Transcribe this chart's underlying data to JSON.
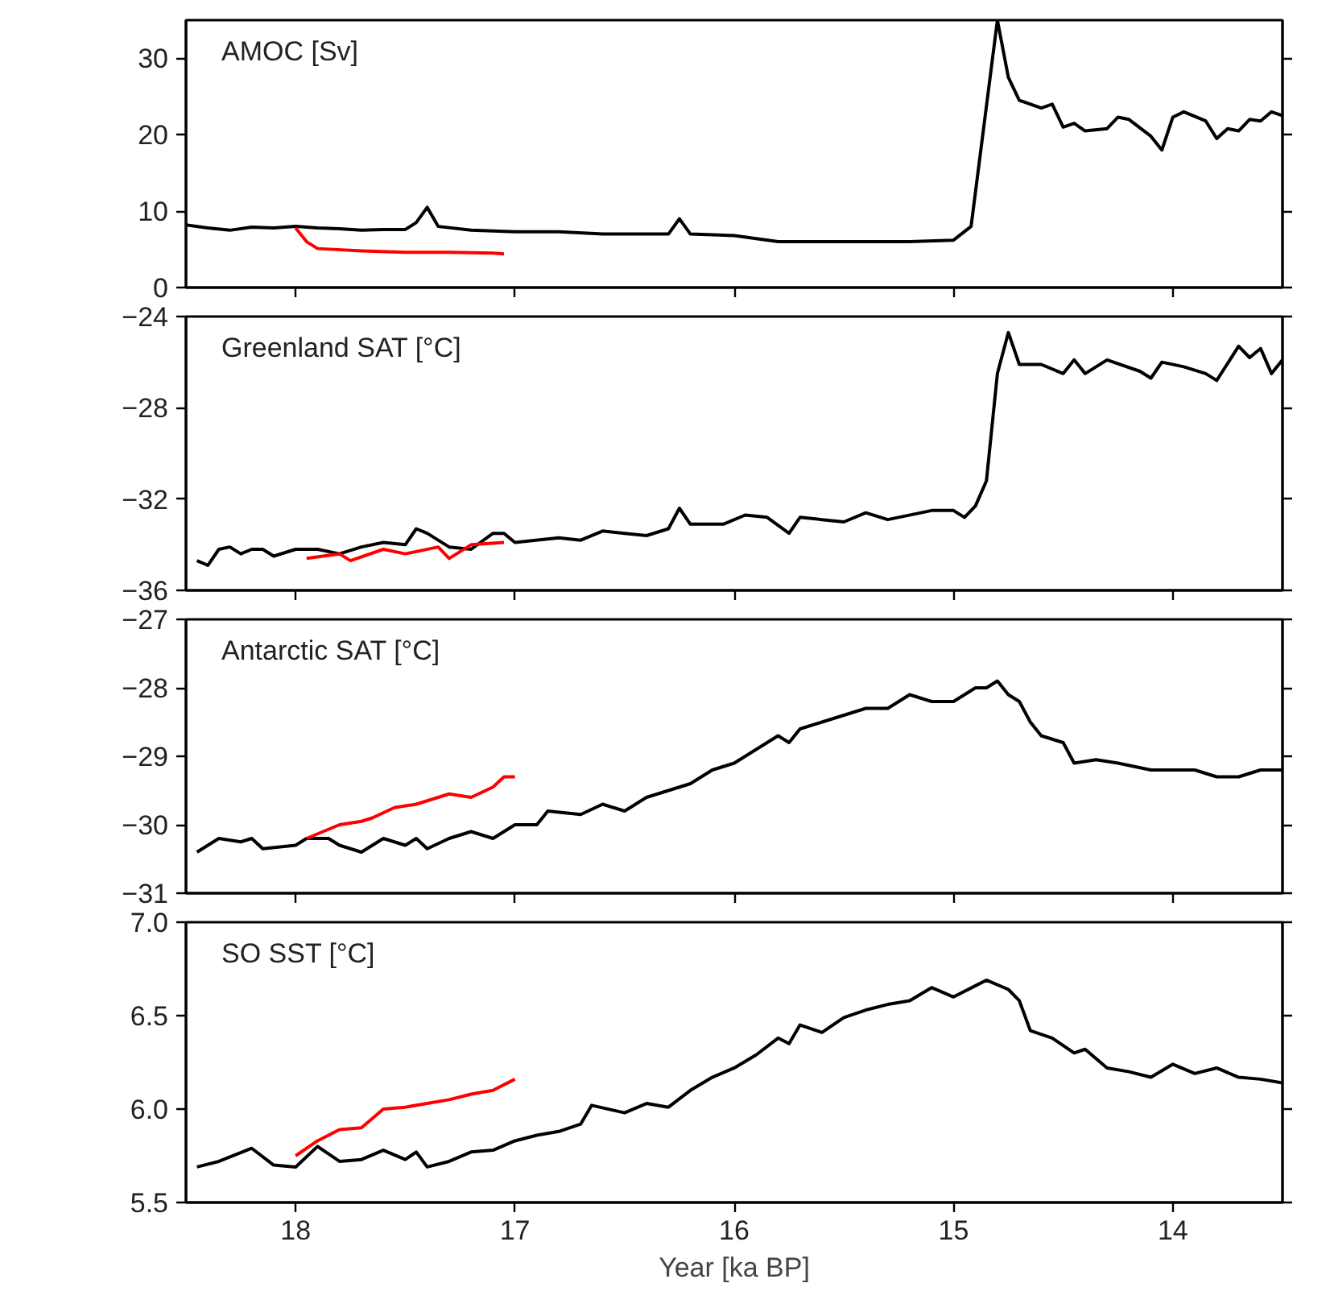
{
  "chart_data": [
    {
      "type": "line",
      "annotations": [
        "AMOC [Sv]"
      ],
      "xlim": [
        18.5,
        13.5
      ],
      "xticks": [
        18,
        17,
        16,
        15,
        14
      ],
      "ylim": [
        0,
        35
      ],
      "yticks": [
        0,
        10,
        20,
        30
      ],
      "tick_labels": "y",
      "grid": false,
      "line_style": "solid",
      "series": [
        {
          "color": "#000000",
          "x": [
            18.5,
            18.4,
            18.3,
            18.2,
            18.1,
            18.0,
            17.9,
            17.8,
            17.7,
            17.6,
            17.5,
            17.45,
            17.4,
            17.35,
            17.2,
            17.0,
            16.8,
            16.6,
            16.4,
            16.3,
            16.25,
            16.2,
            16.0,
            15.8,
            15.5,
            15.2,
            15.0,
            14.92,
            14.8,
            14.75,
            14.7,
            14.6,
            14.55,
            14.5,
            14.45,
            14.4,
            14.3,
            14.25,
            14.2,
            14.1,
            14.05,
            14.0,
            13.95,
            13.85,
            13.8,
            13.75,
            13.7,
            13.65,
            13.6,
            13.55,
            13.5
          ],
          "values": [
            8.2,
            7.8,
            7.5,
            7.9,
            7.8,
            8.0,
            7.8,
            7.7,
            7.5,
            7.6,
            7.6,
            8.5,
            10.5,
            8.0,
            7.5,
            7.3,
            7.3,
            7.0,
            7.0,
            7.0,
            9.0,
            7.0,
            6.8,
            6.0,
            6.0,
            6.0,
            6.2,
            8.0,
            35.0,
            27.5,
            24.5,
            23.5,
            24.0,
            21.0,
            21.5,
            20.5,
            20.8,
            22.3,
            22.0,
            19.8,
            18.0,
            22.3,
            23.0,
            21.8,
            19.5,
            20.8,
            20.5,
            22.0,
            21.8,
            23.0,
            22.5
          ]
        },
        {
          "color": "#ff0000",
          "x": [
            18.0,
            17.95,
            17.9,
            17.7,
            17.5,
            17.3,
            17.1,
            17.05
          ],
          "values": [
            7.8,
            6.0,
            5.1,
            4.8,
            4.6,
            4.6,
            4.5,
            4.4
          ]
        }
      ]
    },
    {
      "type": "line",
      "annotations": [
        "Greenland SAT [°C]"
      ],
      "xlim": [
        18.5,
        13.5
      ],
      "xticks": [
        18,
        17,
        16,
        15,
        14
      ],
      "ylim": [
        -36,
        -24
      ],
      "yticks": [
        -36,
        -32,
        -28,
        -24
      ],
      "tick_labels": "y",
      "grid": false,
      "line_style": "solid",
      "series": [
        {
          "color": "#000000",
          "x": [
            18.45,
            18.4,
            18.35,
            18.3,
            18.25,
            18.2,
            18.15,
            18.1,
            18.0,
            17.9,
            17.8,
            17.7,
            17.6,
            17.5,
            17.45,
            17.4,
            17.3,
            17.2,
            17.1,
            17.05,
            17.0,
            16.8,
            16.7,
            16.6,
            16.5,
            16.4,
            16.3,
            16.25,
            16.2,
            16.05,
            15.95,
            15.85,
            15.75,
            15.7,
            15.5,
            15.4,
            15.3,
            15.1,
            15.0,
            14.95,
            14.9,
            14.85,
            14.8,
            14.75,
            14.7,
            14.6,
            14.5,
            14.45,
            14.4,
            14.3,
            14.15,
            14.1,
            14.05,
            13.95,
            13.85,
            13.8,
            13.7,
            13.65,
            13.6,
            13.55,
            13.5
          ],
          "values": [
            -34.7,
            -34.9,
            -34.2,
            -34.1,
            -34.4,
            -34.2,
            -34.2,
            -34.5,
            -34.2,
            -34.2,
            -34.4,
            -34.1,
            -33.9,
            -34.0,
            -33.3,
            -33.5,
            -34.1,
            -34.2,
            -33.5,
            -33.5,
            -33.9,
            -33.7,
            -33.8,
            -33.4,
            -33.5,
            -33.6,
            -33.3,
            -32.4,
            -33.1,
            -33.1,
            -32.7,
            -32.8,
            -33.5,
            -32.8,
            -33.0,
            -32.6,
            -32.9,
            -32.5,
            -32.5,
            -32.8,
            -32.3,
            -31.2,
            -26.5,
            -24.7,
            -26.1,
            -26.1,
            -26.5,
            -25.9,
            -26.5,
            -25.9,
            -26.4,
            -26.7,
            -26.0,
            -26.2,
            -26.5,
            -26.8,
            -25.3,
            -25.8,
            -25.4,
            -26.5,
            -25.9
          ]
        },
        {
          "color": "#ff0000",
          "x": [
            17.95,
            17.8,
            17.75,
            17.6,
            17.5,
            17.35,
            17.3,
            17.2,
            17.05
          ],
          "values": [
            -34.6,
            -34.4,
            -34.7,
            -34.2,
            -34.4,
            -34.1,
            -34.6,
            -34.0,
            -33.9
          ]
        }
      ]
    },
    {
      "type": "line",
      "annotations": [
        "Antarctic SAT [°C]"
      ],
      "xlim": [
        18.5,
        13.5
      ],
      "xticks": [
        18,
        17,
        16,
        15,
        14
      ],
      "ylim": [
        -31,
        -27
      ],
      "yticks": [
        -31,
        -30,
        -29,
        -28,
        -27
      ],
      "tick_labels": "y",
      "grid": false,
      "line_style": "solid",
      "series": [
        {
          "color": "#000000",
          "x": [
            18.45,
            18.35,
            18.25,
            18.2,
            18.15,
            18.0,
            17.95,
            17.85,
            17.8,
            17.7,
            17.6,
            17.5,
            17.45,
            17.4,
            17.3,
            17.2,
            17.1,
            17.0,
            16.9,
            16.85,
            16.7,
            16.6,
            16.5,
            16.4,
            16.3,
            16.2,
            16.1,
            16.0,
            15.9,
            15.8,
            15.75,
            15.7,
            15.6,
            15.5,
            15.4,
            15.3,
            15.2,
            15.1,
            15.0,
            14.9,
            14.85,
            14.8,
            14.75,
            14.7,
            14.65,
            14.6,
            14.5,
            14.45,
            14.35,
            14.25,
            14.1,
            14.0,
            13.9,
            13.8,
            13.7,
            13.6,
            13.5
          ],
          "values": [
            -30.4,
            -30.2,
            -30.25,
            -30.2,
            -30.35,
            -30.3,
            -30.2,
            -30.2,
            -30.3,
            -30.4,
            -30.2,
            -30.3,
            -30.2,
            -30.35,
            -30.2,
            -30.1,
            -30.2,
            -30.0,
            -30.0,
            -29.8,
            -29.85,
            -29.7,
            -29.8,
            -29.6,
            -29.5,
            -29.4,
            -29.2,
            -29.1,
            -28.9,
            -28.7,
            -28.8,
            -28.6,
            -28.5,
            -28.4,
            -28.3,
            -28.3,
            -28.1,
            -28.2,
            -28.2,
            -28.0,
            -28.0,
            -27.9,
            -28.1,
            -28.2,
            -28.5,
            -28.7,
            -28.8,
            -29.1,
            -29.05,
            -29.1,
            -29.2,
            -29.2,
            -29.2,
            -29.3,
            -29.3,
            -29.2,
            -29.2
          ]
        },
        {
          "color": "#ff0000",
          "x": [
            17.95,
            17.8,
            17.7,
            17.65,
            17.55,
            17.45,
            17.3,
            17.2,
            17.1,
            17.05,
            17.0
          ],
          "values": [
            -30.2,
            -30.0,
            -29.95,
            -29.9,
            -29.75,
            -29.7,
            -29.55,
            -29.6,
            -29.45,
            -29.3,
            -29.3
          ]
        }
      ]
    },
    {
      "type": "line",
      "annotations": [
        "SO SST [°C]"
      ],
      "xlabel": "Year [ka BP]",
      "xlim": [
        18.5,
        13.5
      ],
      "xticks": [
        18,
        17,
        16,
        15,
        14
      ],
      "ylim": [
        5.5,
        7.0
      ],
      "yticks": [
        {
          "value": 5.5,
          "label": "5.5"
        },
        {
          "value": 6.0,
          "label": "6.0"
        },
        {
          "value": 6.5,
          "label": "6.5"
        },
        {
          "value": 7.0,
          "label": "7.0"
        }
      ],
      "grid": false,
      "line_style": "solid",
      "series": [
        {
          "color": "#000000",
          "x": [
            18.45,
            18.35,
            18.2,
            18.1,
            18.0,
            17.9,
            17.8,
            17.7,
            17.6,
            17.5,
            17.45,
            17.4,
            17.3,
            17.2,
            17.1,
            17.0,
            16.9,
            16.8,
            16.7,
            16.65,
            16.5,
            16.4,
            16.3,
            16.2,
            16.1,
            16.0,
            15.9,
            15.8,
            15.75,
            15.7,
            15.6,
            15.5,
            15.4,
            15.3,
            15.2,
            15.1,
            15.0,
            14.9,
            14.85,
            14.75,
            14.7,
            14.65,
            14.55,
            14.45,
            14.4,
            14.3,
            14.2,
            14.1,
            14.0,
            13.9,
            13.8,
            13.7,
            13.6,
            13.5
          ],
          "values": [
            5.69,
            5.72,
            5.79,
            5.7,
            5.69,
            5.8,
            5.72,
            5.73,
            5.78,
            5.73,
            5.77,
            5.69,
            5.72,
            5.77,
            5.78,
            5.83,
            5.86,
            5.88,
            5.92,
            6.02,
            5.98,
            6.03,
            6.01,
            6.1,
            6.17,
            6.22,
            6.29,
            6.38,
            6.35,
            6.45,
            6.41,
            6.49,
            6.53,
            6.56,
            6.58,
            6.65,
            6.6,
            6.66,
            6.69,
            6.64,
            6.58,
            6.42,
            6.38,
            6.3,
            6.32,
            6.22,
            6.2,
            6.17,
            6.24,
            6.19,
            6.22,
            6.17,
            6.16,
            6.14
          ]
        },
        {
          "color": "#ff0000",
          "x": [
            18.0,
            17.9,
            17.8,
            17.7,
            17.6,
            17.5,
            17.4,
            17.3,
            17.2,
            17.1,
            17.0
          ],
          "values": [
            5.75,
            5.83,
            5.89,
            5.9,
            6.0,
            6.01,
            6.03,
            6.05,
            6.08,
            6.1,
            6.16
          ]
        }
      ]
    }
  ]
}
